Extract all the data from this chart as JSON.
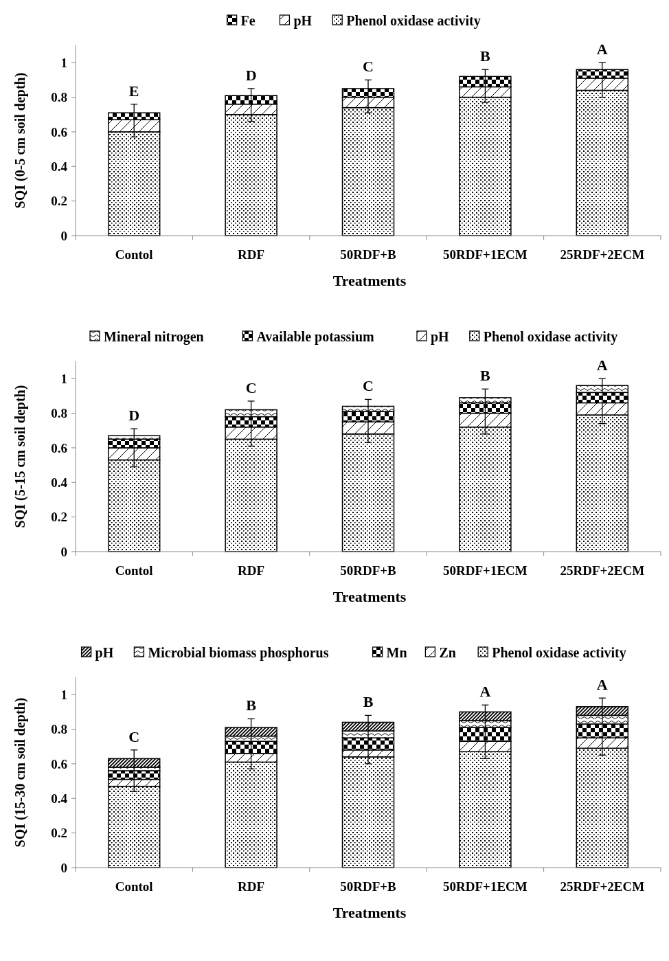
{
  "chart_data": [
    {
      "type": "bar",
      "stacked": true,
      "legend": "top",
      "xlabel": "Treatments",
      "ylabel": "SQI (0-5 cm soil depth)",
      "categories": [
        "Contol",
        "RDF",
        "50RDF+B",
        "50RDF+1ECM",
        "25RDF+2ECM"
      ],
      "ylim": [
        0,
        1.1
      ],
      "yticks": [
        0,
        0.2,
        0.4,
        0.6,
        0.8,
        1
      ],
      "series": [
        {
          "name": "Phenol oxidase activity",
          "color": "#000000",
          "values": [
            0.6,
            0.7,
            0.74,
            0.8,
            0.84
          ]
        },
        {
          "name": "pH",
          "color": "#000000",
          "values": [
            0.07,
            0.06,
            0.06,
            0.06,
            0.07
          ]
        },
        {
          "name": "Fe",
          "color": "#000000",
          "values": [
            0.04,
            0.05,
            0.05,
            0.06,
            0.05
          ],
          "errors": [
            [
              0.57,
              0.76
            ],
            [
              0.66,
              0.85
            ],
            [
              0.71,
              0.9
            ],
            [
              0.77,
              0.96
            ],
            [
              0.8,
              1.0
            ]
          ],
          "value_labels": [
            "E",
            "D",
            "C",
            "B",
            "A"
          ]
        }
      ]
    },
    {
      "type": "bar",
      "stacked": true,
      "legend": "top",
      "xlabel": "Treatments",
      "ylabel": "SQI (5-15 cm soil depth)",
      "categories": [
        "Contol",
        "RDF",
        "50RDF+B",
        "50RDF+1ECM",
        "25RDF+2ECM"
      ],
      "ylim": [
        0,
        1.1
      ],
      "yticks": [
        0,
        0.2,
        0.4,
        0.6,
        0.8,
        1
      ],
      "series": [
        {
          "name": "Phenol oxidase activity",
          "color": "#000000",
          "values": [
            0.53,
            0.65,
            0.68,
            0.72,
            0.79
          ]
        },
        {
          "name": "pH",
          "color": "#000000",
          "values": [
            0.07,
            0.07,
            0.07,
            0.08,
            0.07
          ]
        },
        {
          "name": "Available potassium",
          "color": "#000000",
          "values": [
            0.05,
            0.06,
            0.06,
            0.06,
            0.06
          ]
        },
        {
          "name": "Mineral nitrogen",
          "color": "#000000",
          "values": [
            0.02,
            0.04,
            0.03,
            0.03,
            0.04
          ],
          "errors": [
            [
              0.49,
              0.71
            ],
            [
              0.61,
              0.87
            ],
            [
              0.63,
              0.88
            ],
            [
              0.68,
              0.94
            ],
            [
              0.74,
              1.0
            ]
          ],
          "value_labels": [
            "D",
            "C",
            "C",
            "B",
            "A"
          ]
        }
      ]
    },
    {
      "type": "bar",
      "stacked": true,
      "legend": "top",
      "xlabel": "Treatments",
      "ylabel": "SQI (15-30 cm soil depth)",
      "categories": [
        "Contol",
        "RDF",
        "50RDF+B",
        "50RDF+1ECM",
        "25RDF+2ECM"
      ],
      "ylim": [
        0,
        1.1
      ],
      "yticks": [
        0,
        0.2,
        0.4,
        0.6,
        0.8,
        1
      ],
      "series": [
        {
          "name": "Phenol oxidase activity",
          "color": "#000000",
          "values": [
            0.47,
            0.61,
            0.64,
            0.67,
            0.69
          ]
        },
        {
          "name": "Zn",
          "color": "#000000",
          "values": [
            0.04,
            0.05,
            0.04,
            0.06,
            0.06
          ]
        },
        {
          "name": "Mn",
          "color": "#000000",
          "values": [
            0.05,
            0.07,
            0.07,
            0.08,
            0.08
          ]
        },
        {
          "name": "Microbial biomass phosphorus",
          "color": "#000000",
          "values": [
            0.02,
            0.03,
            0.04,
            0.04,
            0.05
          ]
        },
        {
          "name": "pH",
          "color": "#000000",
          "values": [
            0.05,
            0.05,
            0.05,
            0.05,
            0.05
          ],
          "errors": [
            [
              0.44,
              0.68
            ],
            [
              0.57,
              0.86
            ],
            [
              0.6,
              0.88
            ],
            [
              0.63,
              0.94
            ],
            [
              0.65,
              0.98
            ]
          ],
          "value_labels": [
            "C",
            "B",
            "B",
            "A",
            "A"
          ]
        }
      ]
    }
  ]
}
